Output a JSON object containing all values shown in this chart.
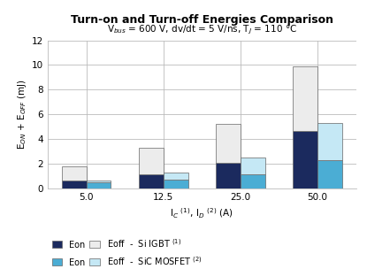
{
  "title": "Turn-on and Turn-off Energies Comparison",
  "subtitle": "V$_{bus}$ = 600 V, dv/dt = 5 V/ns, T$_J$ = 110 °C",
  "xlabel": "I$_C$ $^{(1)}$, I$_D$ $^{(2)}$ (A)",
  "ylabel": "E$_{ON}$ + E$_{OFF}$ (mJ)",
  "categories": [
    "5.0",
    "12.5",
    "25.0",
    "50.0"
  ],
  "igbt_eon": [
    0.65,
    1.15,
    2.05,
    4.65
  ],
  "igbt_eoff": [
    1.1,
    2.15,
    3.15,
    5.25
  ],
  "sic_eon": [
    0.5,
    0.7,
    1.1,
    2.3
  ],
  "sic_eoff": [
    0.1,
    0.6,
    1.4,
    3.0
  ],
  "igbt_eon_color": "#1b2a5e",
  "igbt_eoff_color": "#ececec",
  "sic_eon_color": "#4badd4",
  "sic_eoff_color": "#c5e8f5",
  "ylim": [
    0,
    12
  ],
  "yticks": [
    0,
    2,
    4,
    6,
    8,
    10,
    12
  ],
  "bar_width": 0.32,
  "x_positions": [
    0.5,
    1.5,
    2.5,
    3.5
  ],
  "xlim": [
    0,
    4.0
  ],
  "grid_color": "#bbbbbb",
  "edge_color": "#666666"
}
